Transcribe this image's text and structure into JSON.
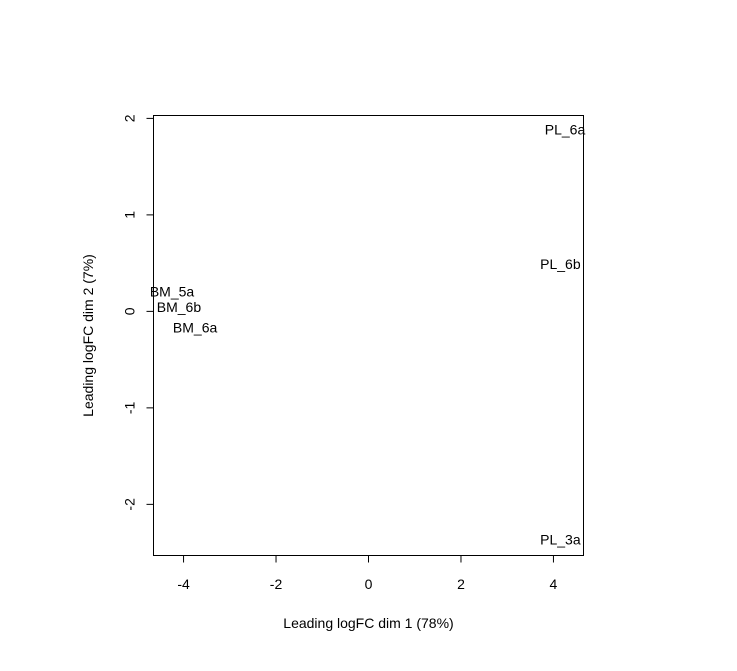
{
  "chart_data": {
    "type": "scatter",
    "title": "",
    "xlabel": "Leading logFC dim 1 (78%)",
    "ylabel": "Leading logFC dim 2 (7%)",
    "xlim": [
      -4.65,
      4.65
    ],
    "ylim": [
      -2.53,
      2.03
    ],
    "xticks": [
      -4,
      -2,
      0,
      2,
      4
    ],
    "yticks": [
      -2,
      -1,
      0,
      1,
      2
    ],
    "xtick_labels": [
      "-4",
      "-2",
      "0",
      "2",
      "4"
    ],
    "ytick_labels": [
      "-2",
      "-1",
      "0",
      "1",
      "2"
    ],
    "grid": false,
    "legend": "none",
    "points": [
      {
        "label": "PL_6a",
        "x": 4.25,
        "y": 1.87
      },
      {
        "label": "PL_6b",
        "x": 4.15,
        "y": 0.48
      },
      {
        "label": "BM_5a",
        "x": -4.25,
        "y": 0.19
      },
      {
        "label": "BM_6b",
        "x": -4.1,
        "y": 0.03
      },
      {
        "label": "BM_6a",
        "x": -3.75,
        "y": -0.18
      },
      {
        "label": "PL_3a",
        "x": 4.15,
        "y": -2.38
      }
    ]
  }
}
